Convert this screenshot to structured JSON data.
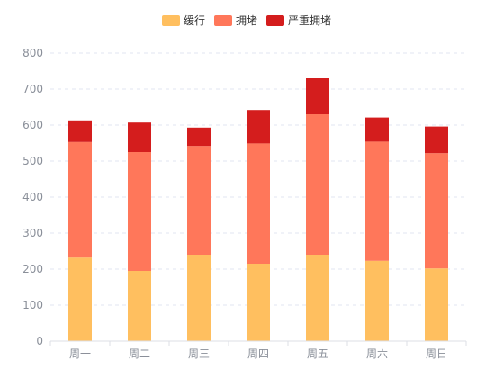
{
  "chart_data": {
    "type": "bar",
    "stacked": true,
    "categories": [
      "周一",
      "周二",
      "周三",
      "周四",
      "周五",
      "周六",
      "周日"
    ],
    "series": [
      {
        "name": "缓行",
        "color": "#FFBF5F",
        "values": [
          232,
          195,
          240,
          215,
          240,
          223,
          202
        ]
      },
      {
        "name": "拥堵",
        "color": "#FF775A",
        "values": [
          321,
          330,
          302,
          334,
          390,
          331,
          320
        ]
      },
      {
        "name": "严重拥堵",
        "color": "#D41D1D",
        "values": [
          60,
          82,
          51,
          93,
          100,
          67,
          74
        ]
      }
    ],
    "yticks": [
      0,
      100,
      200,
      300,
      400,
      500,
      600,
      700,
      800
    ],
    "ylim": [
      0,
      800
    ],
    "grid": true,
    "legend": "top-center"
  }
}
